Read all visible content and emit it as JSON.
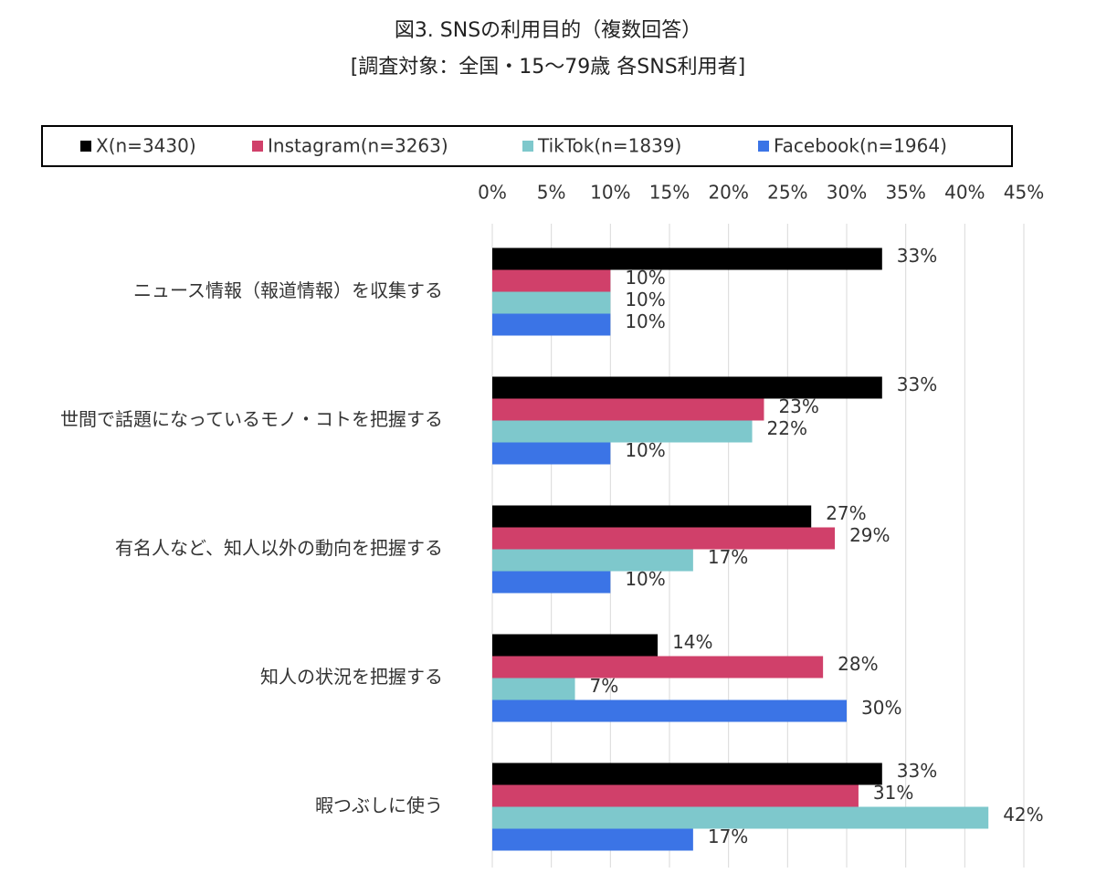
{
  "chart_data": {
    "type": "hbar",
    "title": "図3. SNSの利用目的（複数回答）",
    "subtitle": "[調査対象：全国・15～79歳 各SNS利用者]",
    "categories": [
      "ニュース情報（報道情報）を収集する",
      "世間で話題になっているモノ・コトを把握する",
      "有名人など、知人以外の動向を把握する",
      "知人の状況を把握する",
      "暇つぶしに使う"
    ],
    "series": [
      {
        "name": "X(n=3430)",
        "color": "#000000",
        "values": [
          33,
          33,
          27,
          14,
          33
        ],
        "value_labels": [
          "33%",
          "33%",
          "27%",
          "14%",
          "33%"
        ]
      },
      {
        "name": "Instagram(n=3263)",
        "color": "#d0406a",
        "values": [
          10,
          23,
          29,
          28,
          31
        ],
        "value_labels": [
          "10%",
          "23%",
          "29%",
          "28%",
          "31%"
        ]
      },
      {
        "name": "TikTok(n=1839)",
        "color": "#7ec8cc",
        "values": [
          10,
          22,
          17,
          7,
          42
        ],
        "value_labels": [
          "10%",
          "22%",
          "17%",
          "7%",
          "42%"
        ]
      },
      {
        "name": "Facebook(n=1964)",
        "color": "#3b74e6",
        "values": [
          10,
          10,
          10,
          30,
          17
        ],
        "value_labels": [
          "10%",
          "10%",
          "10%",
          "30%",
          "17%"
        ]
      }
    ],
    "xlim": [
      0,
      45
    ],
    "xticks": [
      {
        "value": 0,
        "label": "0%"
      },
      {
        "value": 5,
        "label": "5%"
      },
      {
        "value": 10,
        "label": "10%"
      },
      {
        "value": 15,
        "label": "15%"
      },
      {
        "value": 20,
        "label": "20%"
      },
      {
        "value": 25,
        "label": "25%"
      },
      {
        "value": 30,
        "label": "30%"
      },
      {
        "value": 35,
        "label": "35%"
      },
      {
        "value": 40,
        "label": "40%"
      },
      {
        "value": 45,
        "label": "45%"
      }
    ],
    "grid": true,
    "legend": "top"
  }
}
